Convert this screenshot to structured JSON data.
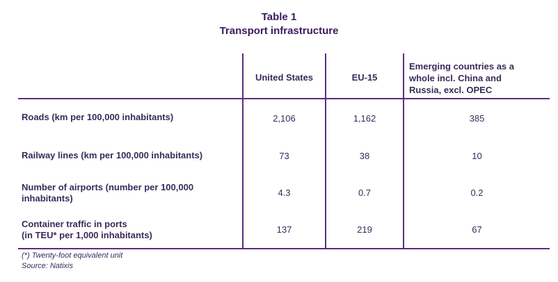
{
  "title": "Table 1",
  "subtitle": "Transport infrastructure",
  "columns": [
    "United States",
    "EU-15",
    "Emerging countries as a whole incl. China and Russia, excl. OPEC"
  ],
  "header_multiline": [
    "Emerging countries as a",
    "whole incl. China and",
    "Russia, excl. OPEC"
  ],
  "rows": [
    {
      "label_lines": [
        "Roads (km per 100,000 inhabitants)"
      ],
      "values": [
        "2,106",
        "1,162",
        "385"
      ]
    },
    {
      "label_lines": [
        "Railway lines (km per 100,000 inhabitants)"
      ],
      "values": [
        "73",
        "38",
        "10"
      ]
    },
    {
      "label_lines": [
        "Number of airports (number per 100,000",
        "inhabitants)"
      ],
      "values": [
        "4.3",
        "0.7",
        "0.2"
      ]
    },
    {
      "label_lines": [
        "Container traffic in ports",
        "(in TEU* per 1,000 inhabitants)"
      ],
      "values": [
        "137",
        "219",
        "67"
      ]
    }
  ],
  "footnote": "(*) Twenty-foot equivalent unit",
  "source": "Source: Natixis",
  "accent_color": "#5a2d82"
}
